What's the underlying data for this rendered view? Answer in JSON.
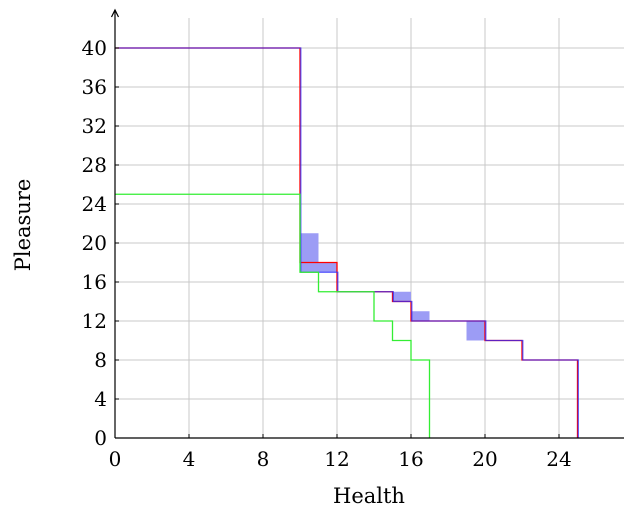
{
  "chart_data": {
    "type": "line",
    "title": "",
    "xlabel": "Health",
    "ylabel": "Pleasure",
    "xlim": [
      0,
      27
    ],
    "ylim": [
      0,
      44
    ],
    "grid": true,
    "x_ticks": [
      "0",
      "4",
      "8",
      "12",
      "16",
      "20",
      "24"
    ],
    "y_ticks": [
      "0",
      "4",
      "8",
      "12",
      "16",
      "20",
      "24",
      "28",
      "32",
      "36",
      "40"
    ],
    "colors": {
      "red": "#ff0000",
      "blue": "#2b2bff",
      "green": "#33ee33",
      "fill": "#9c9cf5",
      "grid": "#c8c8c8"
    },
    "series": [
      {
        "color": "red",
        "points": [
          [
            0,
            40
          ],
          [
            10,
            40
          ],
          [
            10,
            18
          ],
          [
            12,
            18
          ],
          [
            12,
            15
          ],
          [
            15,
            15
          ],
          [
            15,
            14
          ],
          [
            16,
            14
          ],
          [
            16,
            12
          ],
          [
            18,
            12
          ],
          [
            20,
            12
          ],
          [
            20,
            10
          ],
          [
            22,
            10
          ],
          [
            22,
            8
          ],
          [
            25,
            8
          ],
          [
            25,
            0
          ]
        ]
      },
      {
        "color": "blue",
        "points": [
          [
            0,
            40
          ],
          [
            10,
            40
          ],
          [
            10,
            17
          ],
          [
            12,
            17
          ],
          [
            12,
            15
          ],
          [
            15,
            15
          ],
          [
            15,
            14
          ],
          [
            16,
            14
          ],
          [
            16,
            12
          ],
          [
            18,
            12
          ],
          [
            20,
            12
          ],
          [
            20,
            10
          ],
          [
            22,
            10
          ],
          [
            22,
            8
          ],
          [
            25,
            8
          ],
          [
            25,
            0
          ]
        ]
      },
      {
        "color": "green",
        "points": [
          [
            0,
            25
          ],
          [
            10,
            25
          ],
          [
            10,
            17
          ],
          [
            11,
            17
          ],
          [
            11,
            15
          ],
          [
            14,
            15
          ],
          [
            14,
            12
          ],
          [
            15,
            12
          ],
          [
            15,
            10
          ],
          [
            16,
            10
          ],
          [
            16,
            8
          ],
          [
            17,
            8
          ],
          [
            17,
            0
          ]
        ]
      }
    ],
    "shaded_regions": [
      {
        "x": [
          10,
          11
        ],
        "y": [
          17,
          21
        ]
      },
      {
        "x": [
          11,
          12
        ],
        "y": [
          17,
          18
        ]
      },
      {
        "x": [
          15,
          16
        ],
        "y": [
          14,
          15
        ]
      },
      {
        "x": [
          16,
          17
        ],
        "y": [
          12,
          13
        ]
      },
      {
        "x": [
          19,
          20
        ],
        "y": [
          10,
          12
        ]
      }
    ]
  }
}
